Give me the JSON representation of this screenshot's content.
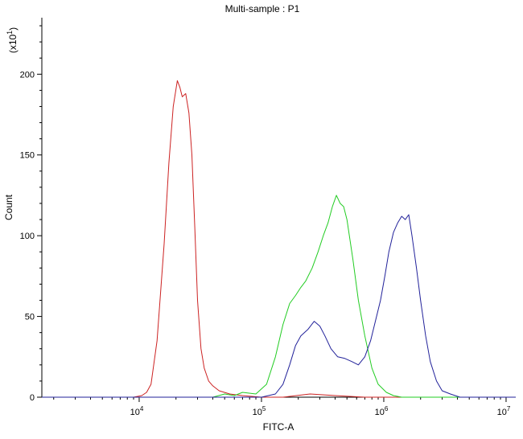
{
  "chart_data": {
    "type": "line",
    "title": "Multi-sample : P1",
    "xlabel": "FITC-A",
    "ylabel": "Count",
    "y_multiplier_label": "(x10",
    "y_multiplier_exp": "1",
    "x_scale": "log",
    "xlim": [
      1600,
      12000000
    ],
    "ylim": [
      0,
      235
    ],
    "x_ticks": [
      {
        "value": 10000,
        "base": "10",
        "exp": "4"
      },
      {
        "value": 100000,
        "base": "10",
        "exp": "5"
      },
      {
        "value": 1000000,
        "base": "10",
        "exp": "6"
      },
      {
        "value": 10000000,
        "base": "10",
        "exp": "7"
      }
    ],
    "y_ticks": [
      0,
      50,
      100,
      150,
      200
    ],
    "grid": false,
    "series": [
      {
        "color": "#cc2222",
        "x": [
          1600,
          6000,
          9000,
          10500,
          11500,
          12500,
          14000,
          16000,
          17500,
          19000,
          20500,
          21500,
          22500,
          24000,
          25500,
          27000,
          28500,
          30000,
          32000,
          34000,
          37000,
          40000,
          45000,
          55000,
          70000,
          100000,
          150000,
          250000,
          400000,
          700000,
          1000000,
          3000000,
          12000000
        ],
        "y": [
          0,
          0,
          0,
          1,
          3,
          8,
          35,
          95,
          145,
          180,
          196,
          192,
          186,
          188,
          176,
          150,
          105,
          60,
          30,
          18,
          10,
          7,
          4,
          2,
          1,
          0,
          0,
          2,
          1,
          0,
          0,
          0,
          0
        ]
      },
      {
        "color": "#22cc22",
        "x": [
          1600,
          40000,
          50000,
          60000,
          70000,
          90000,
          110000,
          130000,
          150000,
          170000,
          190000,
          210000,
          230000,
          260000,
          290000,
          320000,
          350000,
          380000,
          410000,
          440000,
          470000,
          500000,
          560000,
          620000,
          700000,
          800000,
          900000,
          1050000,
          1200000,
          1400000,
          12000000
        ],
        "y": [
          0,
          0,
          2,
          1,
          3,
          2,
          8,
          25,
          45,
          58,
          63,
          68,
          72,
          80,
          90,
          100,
          108,
          118,
          125,
          120,
          118,
          110,
          85,
          60,
          38,
          18,
          8,
          3,
          1,
          0,
          0
        ]
      },
      {
        "color": "#22229a",
        "x": [
          1600,
          100000,
          130000,
          150000,
          170000,
          190000,
          210000,
          240000,
          270000,
          300000,
          330000,
          370000,
          420000,
          480000,
          550000,
          620000,
          700000,
          780000,
          860000,
          940000,
          1020000,
          1100000,
          1200000,
          1300000,
          1400000,
          1500000,
          1600000,
          1700000,
          1850000,
          2000000,
          2200000,
          2400000,
          2700000,
          3000000,
          3500000,
          4200000,
          12000000
        ],
        "y": [
          0,
          0,
          2,
          8,
          20,
          32,
          38,
          42,
          47,
          44,
          38,
          30,
          25,
          24,
          22,
          20,
          25,
          35,
          48,
          60,
          75,
          90,
          102,
          108,
          112,
          110,
          113,
          100,
          80,
          60,
          38,
          22,
          10,
          4,
          2,
          0,
          0
        ]
      }
    ]
  }
}
